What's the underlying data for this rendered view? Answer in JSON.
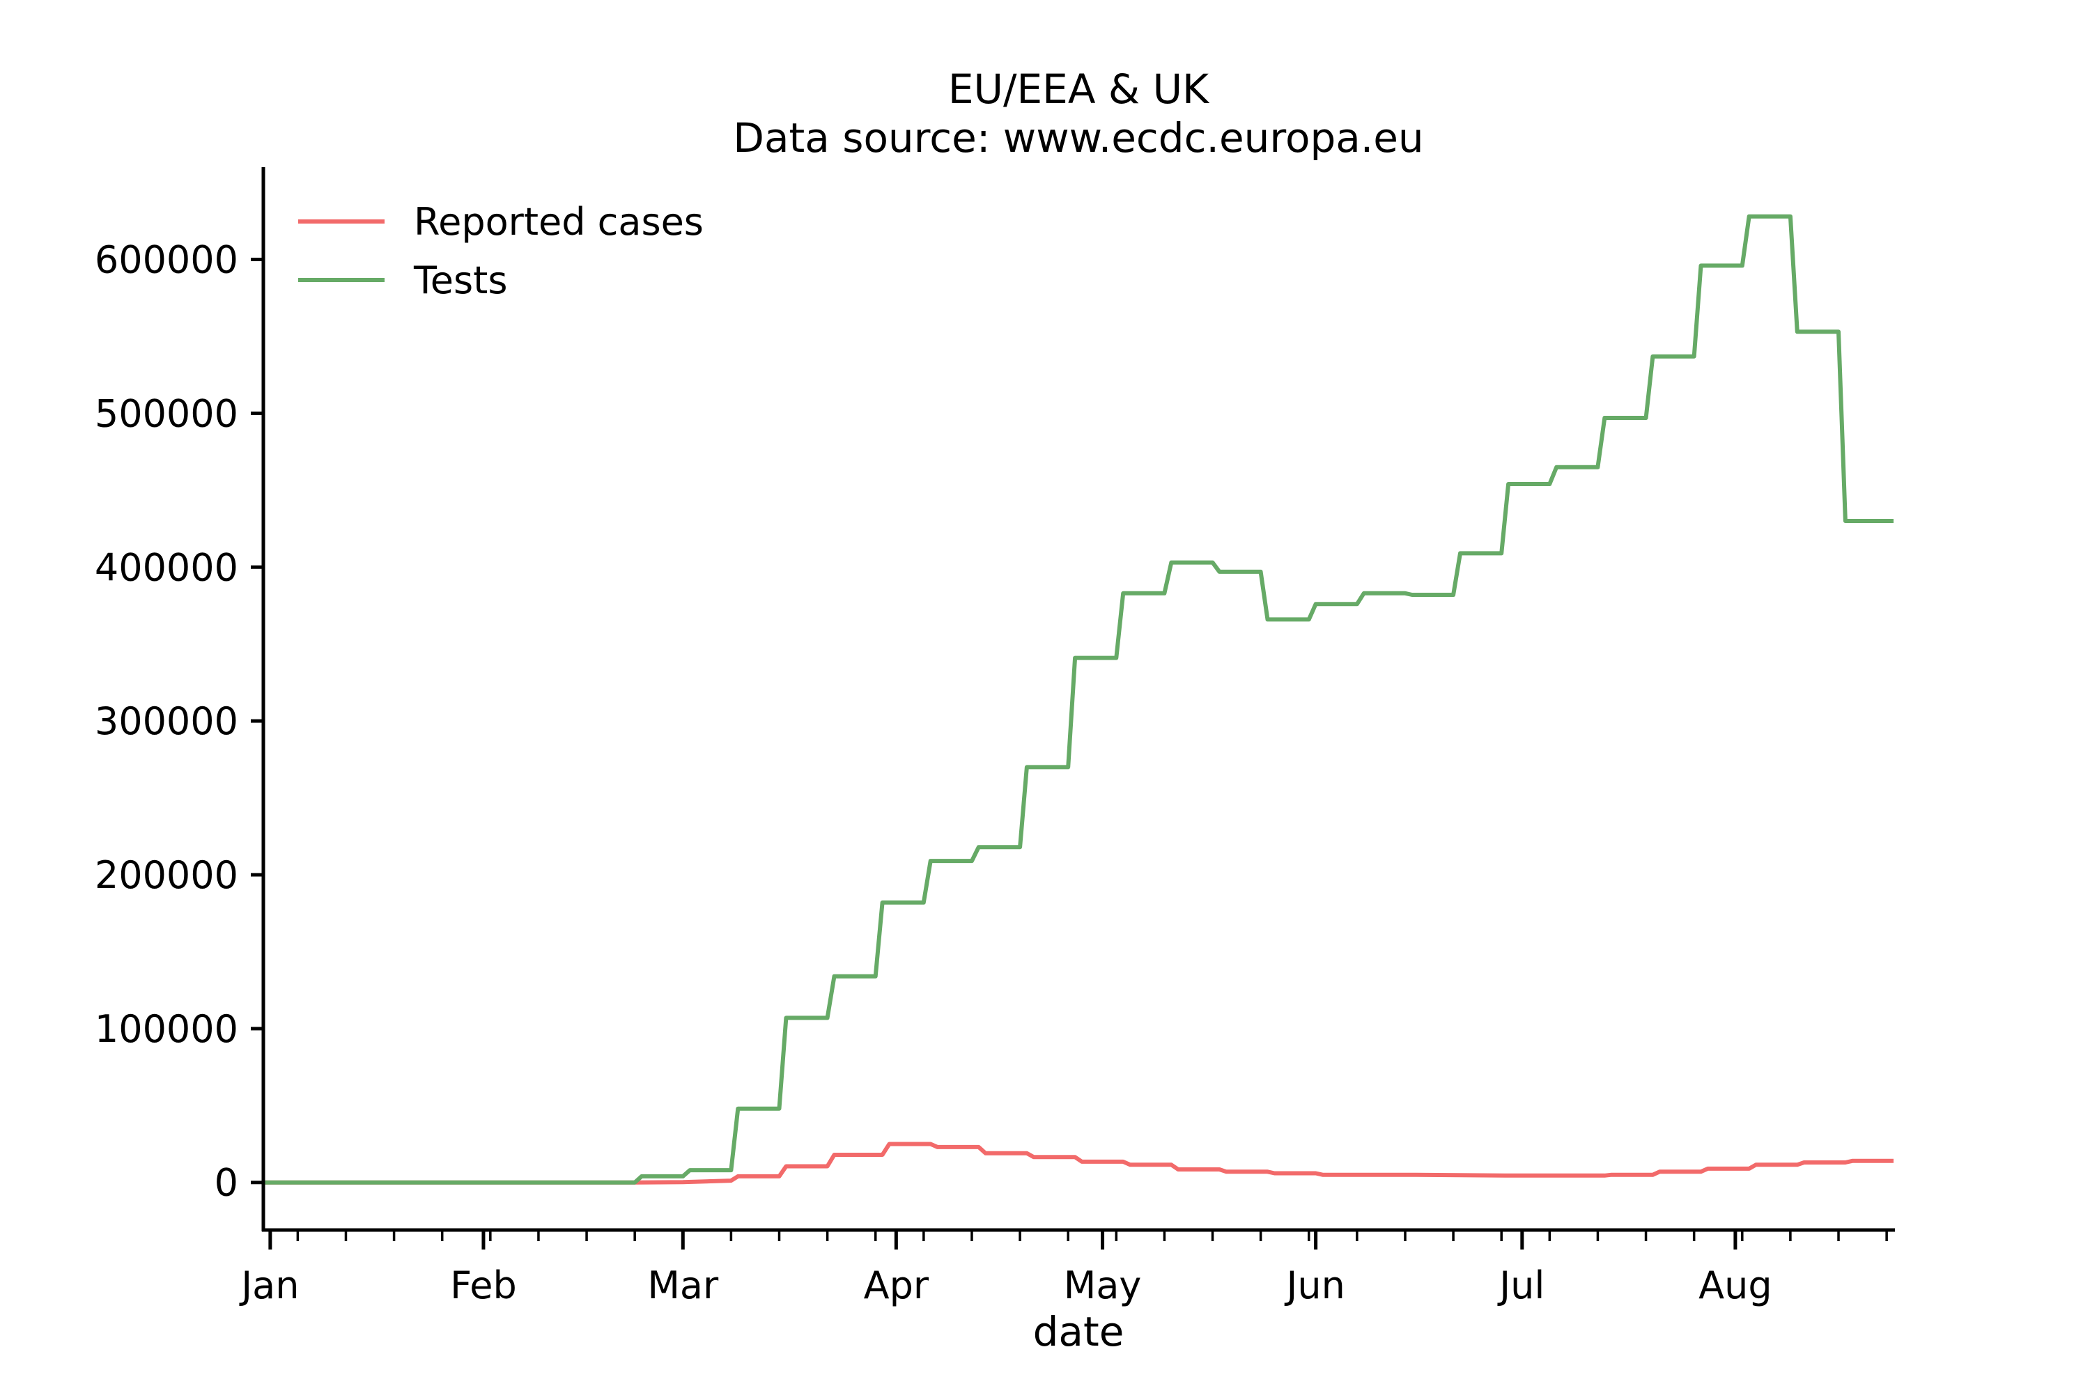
{
  "chart_data": {
    "type": "line",
    "title": [
      "EU/EEA & UK",
      "Data source: www.ecdc.europa.eu"
    ],
    "xlabel": "date",
    "ylabel": "",
    "x_tick_labels": [
      {
        "date": "2020-01-01",
        "label": "Jan"
      },
      {
        "date": "2020-02-01",
        "label": "Feb"
      },
      {
        "date": "2020-03-01",
        "label": "Mar"
      },
      {
        "date": "2020-04-01",
        "label": "Apr"
      },
      {
        "date": "2020-05-01",
        "label": "May"
      },
      {
        "date": "2020-06-01",
        "label": "Jun"
      },
      {
        "date": "2020-07-01",
        "label": "Jul"
      },
      {
        "date": "2020-08-01",
        "label": "Aug"
      }
    ],
    "y_ticks": [
      0,
      100000,
      200000,
      300000,
      400000,
      500000,
      600000
    ],
    "y_tick_labels": [
      "0",
      "100000",
      "200000",
      "300000",
      "400000",
      "500000",
      "600000"
    ],
    "xlim": [
      "2019-12-31",
      "2020-08-24"
    ],
    "ylim": [
      -30000,
      660000
    ],
    "grid": false,
    "legend_position": "top-left",
    "series": [
      {
        "name": "Reported cases",
        "color": "#f26a6a",
        "points": [
          [
            "2019-12-31",
            0
          ],
          [
            "2020-02-23",
            0
          ],
          [
            "2020-03-01",
            200
          ],
          [
            "2020-03-08",
            1200
          ],
          [
            "2020-03-09",
            4000
          ],
          [
            "2020-03-15",
            4000
          ],
          [
            "2020-03-16",
            10500
          ],
          [
            "2020-03-22",
            10500
          ],
          [
            "2020-03-23",
            18000
          ],
          [
            "2020-03-30",
            18000
          ],
          [
            "2020-03-31",
            25000
          ],
          [
            "2020-04-06",
            25000
          ],
          [
            "2020-04-07",
            23000
          ],
          [
            "2020-04-13",
            23000
          ],
          [
            "2020-04-14",
            19000
          ],
          [
            "2020-04-20",
            19000
          ],
          [
            "2020-04-21",
            16500
          ],
          [
            "2020-04-27",
            16500
          ],
          [
            "2020-04-28",
            13500
          ],
          [
            "2020-05-04",
            13500
          ],
          [
            "2020-05-05",
            11500
          ],
          [
            "2020-05-11",
            11500
          ],
          [
            "2020-05-12",
            8500
          ],
          [
            "2020-05-18",
            8500
          ],
          [
            "2020-05-19",
            7000
          ],
          [
            "2020-05-25",
            7000
          ],
          [
            "2020-05-26",
            6000
          ],
          [
            "2020-06-01",
            6000
          ],
          [
            "2020-06-02",
            5000
          ],
          [
            "2020-06-15",
            5000
          ],
          [
            "2020-06-29",
            4500
          ],
          [
            "2020-07-13",
            4500
          ],
          [
            "2020-07-14",
            5000
          ],
          [
            "2020-07-20",
            5000
          ],
          [
            "2020-07-21",
            7000
          ],
          [
            "2020-07-27",
            7000
          ],
          [
            "2020-07-28",
            9000
          ],
          [
            "2020-08-03",
            9000
          ],
          [
            "2020-08-04",
            11500
          ],
          [
            "2020-08-10",
            11500
          ],
          [
            "2020-08-11",
            13000
          ],
          [
            "2020-08-17",
            13000
          ],
          [
            "2020-08-18",
            14000
          ],
          [
            "2020-08-24",
            14000
          ]
        ]
      },
      {
        "name": "Tests",
        "color": "#66aa66",
        "points": [
          [
            "2019-12-31",
            0
          ],
          [
            "2020-02-23",
            0
          ],
          [
            "2020-02-24",
            4000
          ],
          [
            "2020-03-01",
            4000
          ],
          [
            "2020-03-02",
            8000
          ],
          [
            "2020-03-08",
            8000
          ],
          [
            "2020-03-09",
            48000
          ],
          [
            "2020-03-15",
            48000
          ],
          [
            "2020-03-16",
            107000
          ],
          [
            "2020-03-22",
            107000
          ],
          [
            "2020-03-23",
            134000
          ],
          [
            "2020-03-29",
            134000
          ],
          [
            "2020-03-30",
            182000
          ],
          [
            "2020-04-05",
            182000
          ],
          [
            "2020-04-06",
            209000
          ],
          [
            "2020-04-12",
            209000
          ],
          [
            "2020-04-13",
            218000
          ],
          [
            "2020-04-19",
            218000
          ],
          [
            "2020-04-20",
            270000
          ],
          [
            "2020-04-26",
            270000
          ],
          [
            "2020-04-27",
            341000
          ],
          [
            "2020-05-03",
            341000
          ],
          [
            "2020-05-04",
            383000
          ],
          [
            "2020-05-10",
            383000
          ],
          [
            "2020-05-11",
            403000
          ],
          [
            "2020-05-17",
            403000
          ],
          [
            "2020-05-18",
            397000
          ],
          [
            "2020-05-24",
            397000
          ],
          [
            "2020-05-25",
            366000
          ],
          [
            "2020-05-31",
            366000
          ],
          [
            "2020-06-01",
            376000
          ],
          [
            "2020-06-07",
            376000
          ],
          [
            "2020-06-08",
            383000
          ],
          [
            "2020-06-14",
            383000
          ],
          [
            "2020-06-15",
            382000
          ],
          [
            "2020-06-21",
            382000
          ],
          [
            "2020-06-22",
            409000
          ],
          [
            "2020-06-28",
            409000
          ],
          [
            "2020-06-29",
            454000
          ],
          [
            "2020-07-05",
            454000
          ],
          [
            "2020-07-06",
            465000
          ],
          [
            "2020-07-12",
            465000
          ],
          [
            "2020-07-13",
            497000
          ],
          [
            "2020-07-19",
            497000
          ],
          [
            "2020-07-20",
            537000
          ],
          [
            "2020-07-26",
            537000
          ],
          [
            "2020-07-27",
            596000
          ],
          [
            "2020-08-02",
            596000
          ],
          [
            "2020-08-03",
            628000
          ],
          [
            "2020-08-09",
            628000
          ],
          [
            "2020-08-10",
            553000
          ],
          [
            "2020-08-16",
            553000
          ],
          [
            "2020-08-17",
            430000
          ],
          [
            "2020-08-24",
            430000
          ]
        ]
      }
    ]
  }
}
